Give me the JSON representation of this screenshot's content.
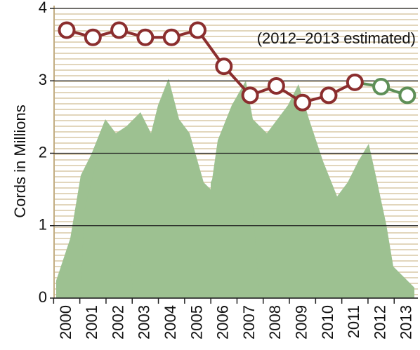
{
  "chart_data": {
    "type": "line",
    "y_label": "Cords in Millions",
    "annotation": "(2012–2013 estimated)",
    "categories": [
      "2000",
      "2001",
      "2002",
      "2003",
      "2004",
      "2005",
      "2006",
      "2007",
      "2008",
      "2009",
      "2010",
      "2011",
      "2012",
      "2013"
    ],
    "series": [
      {
        "color": "#8b2e2e",
        "values": [
          3.7,
          3.6,
          3.7,
          3.6,
          3.6,
          3.7,
          3.2,
          2.8,
          2.93,
          2.7,
          2.8,
          2.98,
          null,
          null
        ]
      },
      {
        "color": "#5e8f57",
        "values": [
          null,
          null,
          null,
          null,
          null,
          null,
          null,
          null,
          null,
          null,
          null,
          null,
          2.92,
          2.8
        ]
      }
    ],
    "ylim": [
      0,
      4
    ],
    "yticks": [
      0,
      1,
      2,
      3,
      4
    ],
    "grid": true
  }
}
